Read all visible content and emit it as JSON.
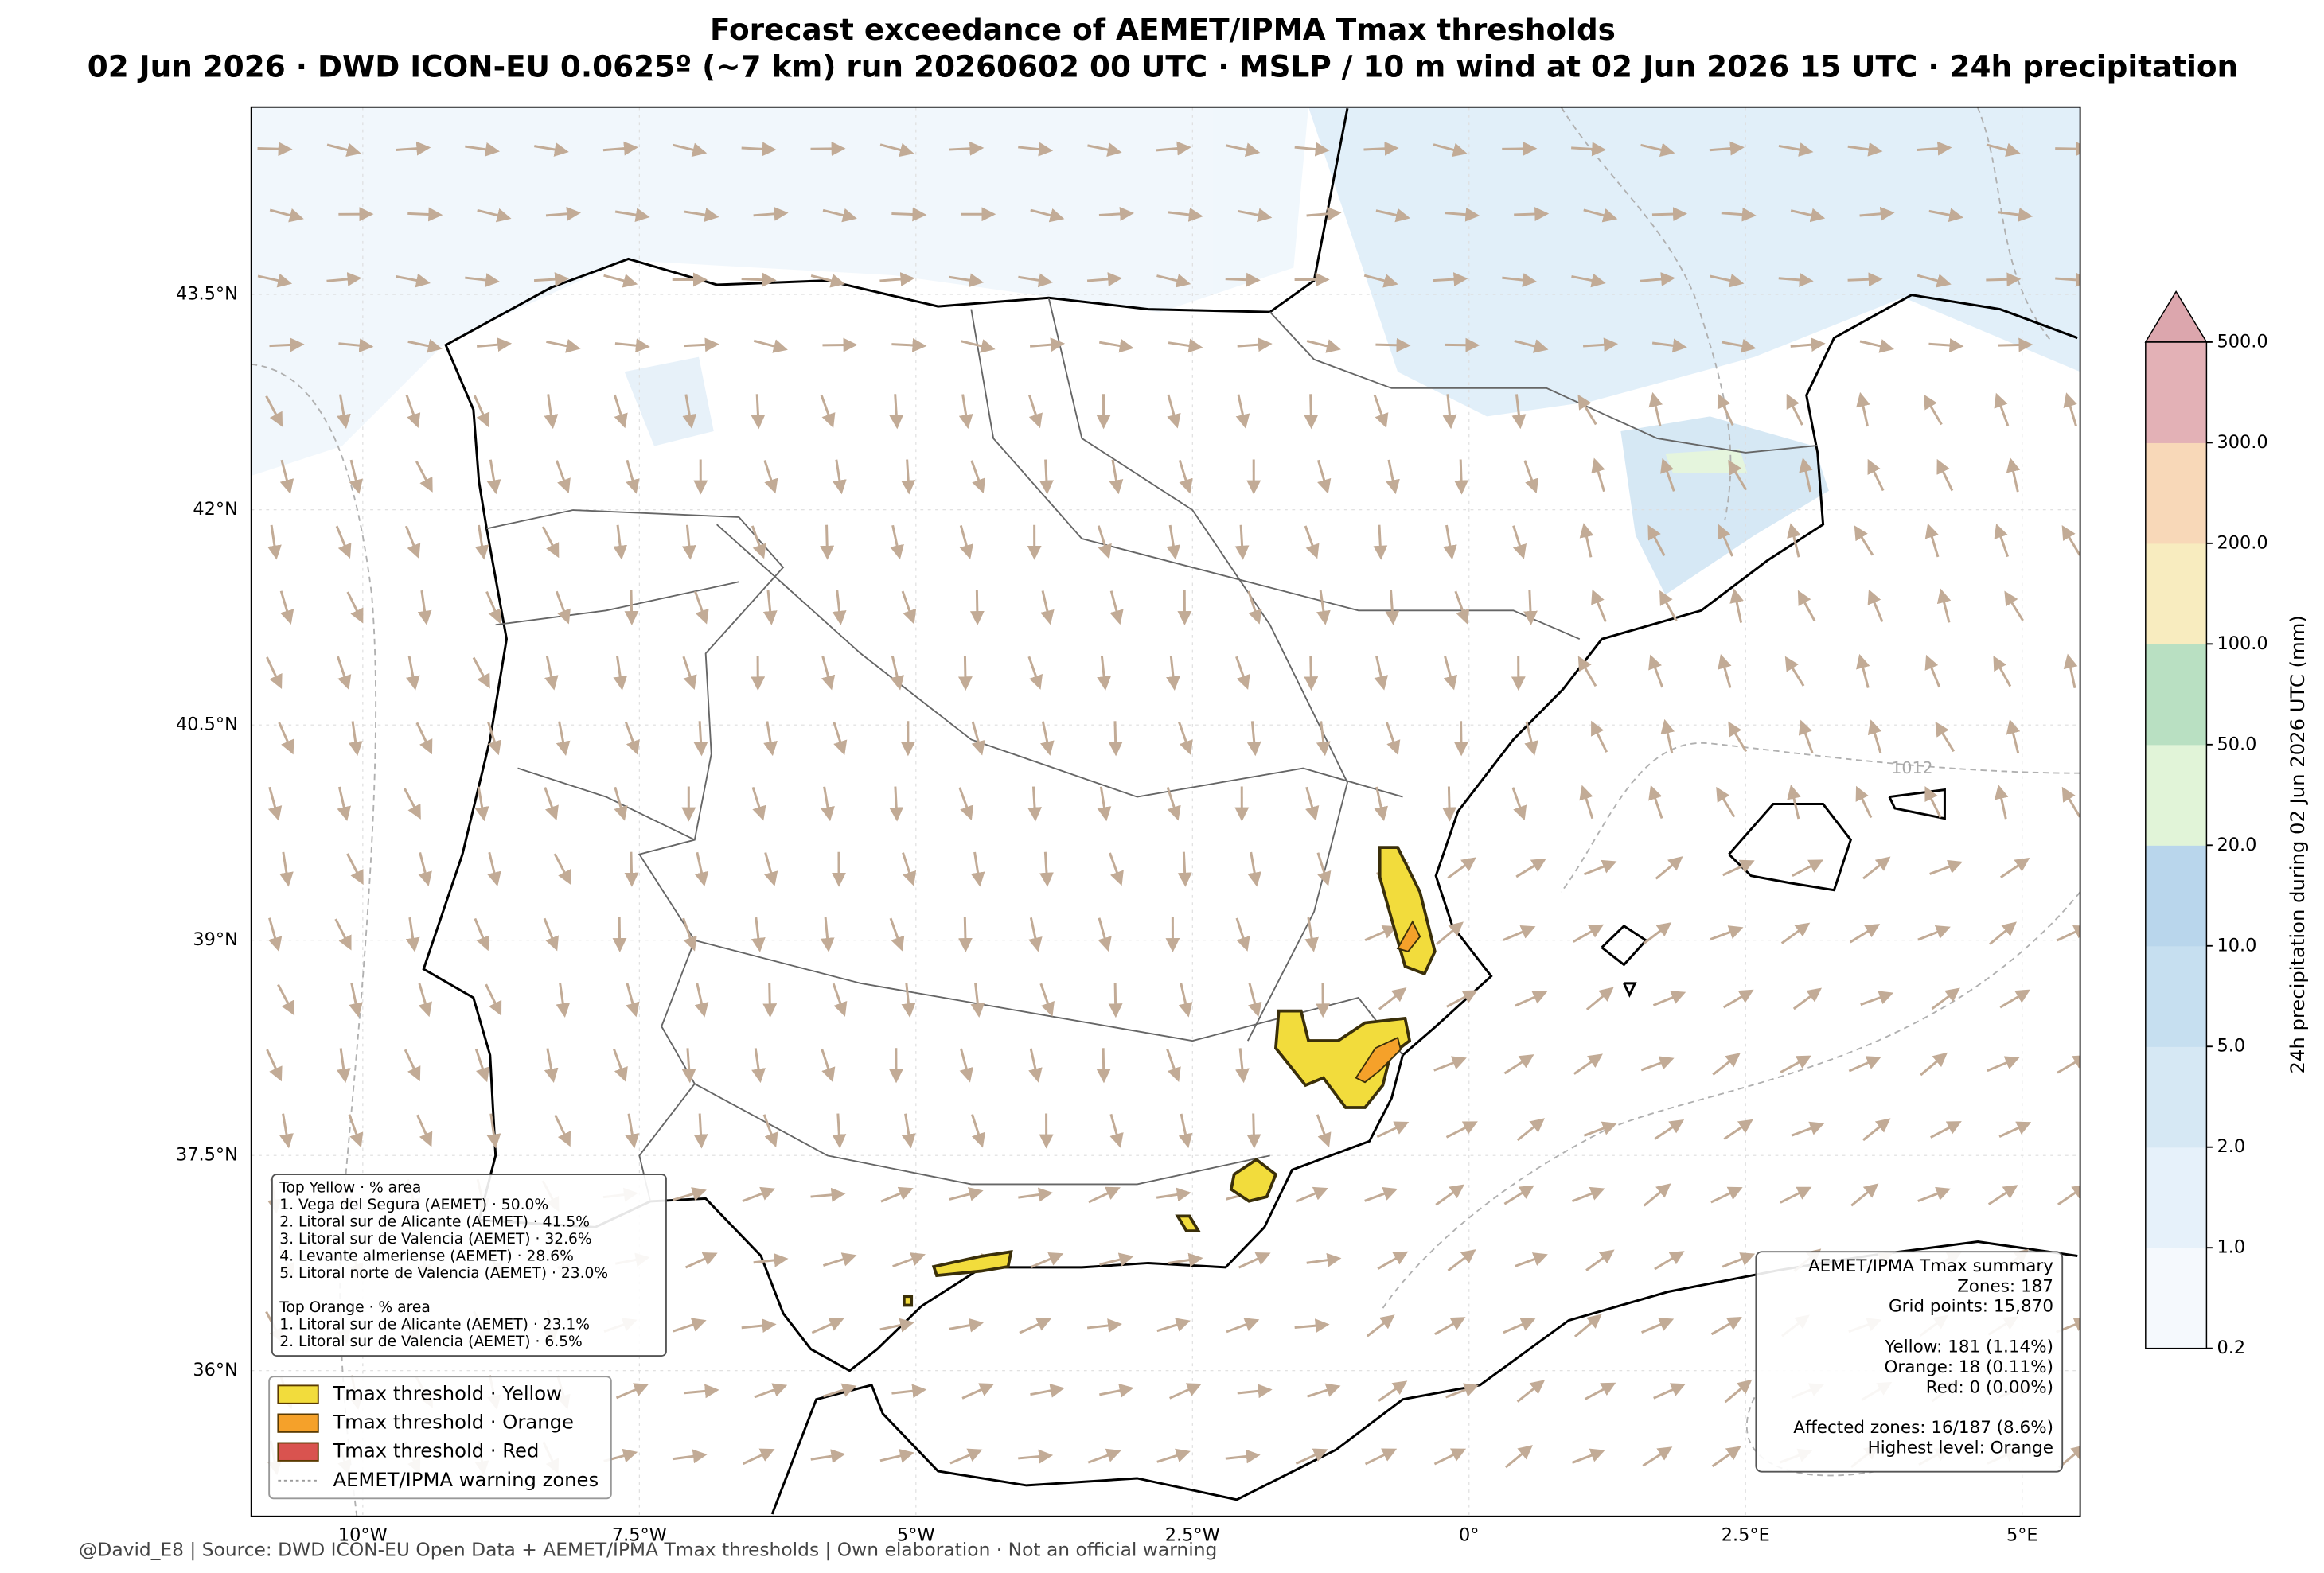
{
  "header": {
    "title": "Forecast exceedance of AEMET/IPMA Tmax thresholds",
    "subtitle": "02 Jun 2026 · DWD ICON-EU 0.0625º (~7 km) run 20260602 00 UTC · MSLP / 10 m wind at 02 Jun 2026 15 UTC · 24h precipitation"
  },
  "map": {
    "lat_labels": [
      "43.5°N",
      "42°N",
      "40.5°N",
      "39°N",
      "37.5°N",
      "36°N"
    ],
    "lon_labels": [
      "10°W",
      "7.5°W",
      "5°W",
      "2.5°W",
      "0°",
      "2.5°E",
      "5°E"
    ],
    "isobar_label": "1012"
  },
  "top_areas": {
    "yellow_title": "Top Yellow · % area",
    "yellow": [
      "1. Vega del Segura (AEMET) · 50.0%",
      "2. Litoral sur de Alicante (AEMET) · 41.5%",
      "3. Litoral sur de Valencia (AEMET) · 32.6%",
      "4. Levante almeriense (AEMET) · 28.6%",
      "5. Litoral norte de Valencia (AEMET) · 23.0%"
    ],
    "orange_title": "Top Orange · % area",
    "orange": [
      "1. Litoral sur de Alicante (AEMET) · 23.1%",
      "2. Litoral sur de Valencia (AEMET) · 6.5%"
    ]
  },
  "legend": [
    {
      "label": "Tmax threshold · Yellow",
      "color": "#f2dc3c"
    },
    {
      "label": "Tmax threshold · Orange",
      "color": "#f5a12a"
    },
    {
      "label": "Tmax threshold · Red",
      "color": "#d9534f"
    },
    {
      "label": "AEMET/IPMA warning zones",
      "color": "#9a9a9a"
    }
  ],
  "summary": {
    "title": "AEMET/IPMA Tmax summary",
    "general": [
      "Zones: 187",
      "Grid points: 15,870"
    ],
    "levels": [
      "Yellow: 181 (1.14%)",
      "Orange: 18 (0.11%)",
      "Red: 0 (0.00%)"
    ],
    "totals": [
      "Affected zones: 16/187 (8.6%)",
      "Highest level: Orange"
    ]
  },
  "colorbar": {
    "label": "24h precipitation during 02 Jun 2026 UTC (mm)",
    "ticks": [
      0.2,
      {
        "value": 1,
        "label": "1.0"
      },
      {
        "value": 2,
        "label": "2.0"
      },
      {
        "value": 5,
        "label": "5.0"
      },
      {
        "value": 10,
        "label": "10.0"
      },
      {
        "value": 20,
        "label": "20.0"
      },
      {
        "value": 50,
        "label": "50.0"
      },
      {
        "value": 100,
        "label": "100.0"
      },
      {
        "value": 200,
        "label": "200.0"
      },
      {
        "value": 300,
        "label": "300.0"
      },
      {
        "value": 500,
        "label": "500.0"
      }
    ],
    "colors": [
      "#f5f9fd",
      "#e6f1fa",
      "#d6e8f4",
      "#c6dff0",
      "#b9d6ec",
      "#e1f4d8",
      "#b9e0c2",
      "#f8ecbf",
      "#f8d8b8",
      "#e3b1b6"
    ],
    "extend_color": "#dca6ad"
  },
  "footer": "@David_E8 | Source: DWD ICON-EU Open Data + AEMET/IPMA Tmax thresholds | Own elaboration · Not an official warning"
}
